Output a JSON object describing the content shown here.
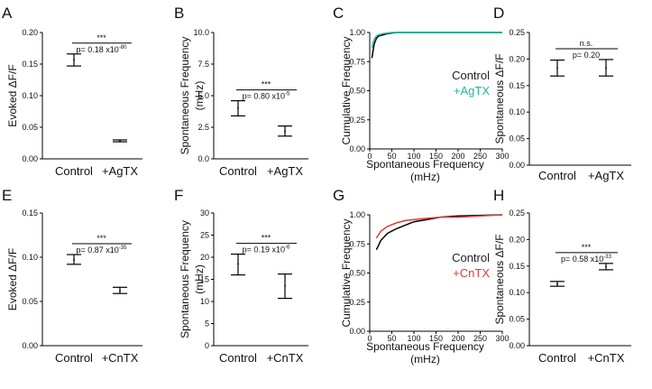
{
  "figure": {
    "panels": [
      {
        "id": "A",
        "type": "errorbar",
        "ylabel": "Evoked ΔF/F",
        "ylim": [
          0,
          0.2
        ],
        "yticks": [
          0,
          0.05,
          0.1,
          0.15,
          0.2
        ],
        "tick_labels": [
          "0.00",
          "0.05",
          "0.10",
          "0.15",
          "0.20"
        ],
        "categories": [
          "Control",
          "+AgTX"
        ],
        "means": [
          0.157,
          0.028
        ],
        "lows": [
          0.147,
          0.027
        ],
        "highs": [
          0.166,
          0.03
        ],
        "sig": {
          "stars": "***",
          "pvalue": "p= 0.18 x10",
          "exp": "-80"
        }
      },
      {
        "id": "B",
        "type": "errorbar",
        "ylabel": "Spontaneous Frequency (mHz)",
        "ylim": [
          0,
          10
        ],
        "yticks": [
          0,
          2.5,
          5,
          7.5,
          10
        ],
        "tick_labels": [
          "0.0",
          "2.5",
          "5.0",
          "7.5",
          "10.0"
        ],
        "categories": [
          "Control",
          "+AgTX"
        ],
        "means": [
          4.0,
          2.2
        ],
        "lows": [
          3.4,
          1.8
        ],
        "highs": [
          4.6,
          2.6
        ],
        "sig": {
          "stars": "***",
          "pvalue": "p= 0.80 x10",
          "exp": "-5"
        }
      },
      {
        "id": "C",
        "type": "line",
        "ylabel": "Cumulative Frequency",
        "xlabel": "Spontaneous Frequency (mHz)",
        "xlim": [
          0,
          300
        ],
        "ylim": [
          0,
          1.0
        ],
        "xticks": [
          0,
          50,
          100,
          150,
          200,
          250,
          300
        ],
        "x_tick_labels": [
          "0",
          "50",
          "100",
          "150",
          "200",
          "250",
          "300"
        ],
        "yticks": [
          0,
          0.25,
          0.5,
          0.75,
          1.0
        ],
        "tick_labels": [
          "0.00",
          "0.25",
          "0.50",
          "0.75",
          "1.00"
        ],
        "series": [
          {
            "name": "Control",
            "color": "#000000",
            "x": [
              5,
              10,
              15,
              20,
              30,
              40,
              50,
              60,
              80,
              300
            ],
            "y": [
              0.78,
              0.9,
              0.95,
              0.97,
              0.98,
              0.99,
              0.995,
              1.0,
              1.0,
              1.0
            ]
          },
          {
            "name": "+AgTX",
            "color": "#1db89a",
            "x": [
              5,
              10,
              15,
              20,
              30,
              40,
              50,
              70,
              300
            ],
            "y": [
              0.87,
              0.94,
              0.97,
              0.98,
              0.99,
              0.995,
              1.0,
              1.0,
              1.0
            ]
          }
        ]
      },
      {
        "id": "D",
        "type": "errorbar",
        "ylabel": "Spontaneous ΔF/F",
        "ylim": [
          0,
          0.25
        ],
        "yticks": [
          0,
          0.05,
          0.1,
          0.15,
          0.2,
          0.25
        ],
        "tick_labels": [
          "0.00",
          "0.05",
          "0.10",
          "0.15",
          "0.20",
          "0.25"
        ],
        "categories": [
          "Control",
          "+AgTX"
        ],
        "means": [
          0.183,
          0.183
        ],
        "lows": [
          0.168,
          0.168
        ],
        "highs": [
          0.198,
          0.199
        ],
        "sig": {
          "stars": "n.s.",
          "pvalue": "p= 0.20",
          "exp": ""
        }
      },
      {
        "id": "E",
        "type": "errorbar",
        "ylabel": "Evoked ΔF/F",
        "ylim": [
          0,
          0.15
        ],
        "yticks": [
          0,
          0.05,
          0.1,
          0.15
        ],
        "tick_labels": [
          "0.00",
          "0.05",
          "0.10",
          "0.15"
        ],
        "categories": [
          "Control",
          "+CnTX"
        ],
        "means": [
          0.097,
          0.062
        ],
        "lows": [
          0.092,
          0.059
        ],
        "highs": [
          0.103,
          0.066
        ],
        "sig": {
          "stars": "***",
          "pvalue": "p= 0.87 x10",
          "exp": "-35"
        }
      },
      {
        "id": "F",
        "type": "errorbar",
        "ylabel": "Spontaneous Frequency (mHz)",
        "ylim": [
          0,
          30
        ],
        "yticks": [
          0,
          5,
          10,
          15,
          20,
          25,
          30
        ],
        "tick_labels": [
          "0",
          "5",
          "10",
          "15",
          "20",
          "25",
          "30"
        ],
        "categories": [
          "Control",
          "+CnTX"
        ],
        "means": [
          18.5,
          13.5
        ],
        "lows": [
          16,
          10.7
        ],
        "highs": [
          20.7,
          16.2
        ],
        "sig": {
          "stars": "***",
          "pvalue": "p= 0.19 x10",
          "exp": "-6"
        }
      },
      {
        "id": "G",
        "type": "line",
        "ylabel": "Cumulative Frequency",
        "xlabel": "Spontaneous Frequency (mHz)",
        "xlim": [
          0,
          300
        ],
        "ylim": [
          0,
          1.0
        ],
        "xticks": [
          0,
          50,
          100,
          150,
          200,
          250,
          300
        ],
        "x_tick_labels": [
          "0",
          "50",
          "100",
          "150",
          "200",
          "250",
          "300"
        ],
        "yticks": [
          0,
          0.25,
          0.5,
          0.75,
          1.0
        ],
        "tick_labels": [
          "0.00",
          "0.25",
          "0.50",
          "0.75",
          "1.00"
        ],
        "series": [
          {
            "name": "Control",
            "color": "#000000",
            "x": [
              15,
              25,
              40,
              60,
              80,
              100,
              130,
              160,
              200,
              300
            ],
            "y": [
              0.7,
              0.78,
              0.84,
              0.88,
              0.91,
              0.94,
              0.96,
              0.98,
              0.99,
              1.0
            ]
          },
          {
            "name": "+CnTX",
            "color": "#e23a35",
            "x": [
              15,
              25,
              40,
              60,
              80,
              100,
              130,
              160,
              200,
              250,
              300
            ],
            "y": [
              0.8,
              0.86,
              0.9,
              0.93,
              0.95,
              0.96,
              0.97,
              0.98,
              0.98,
              0.99,
              1.0
            ]
          }
        ]
      },
      {
        "id": "H",
        "type": "errorbar",
        "ylabel": "Spontaneous ΔF/F",
        "ylim": [
          0,
          0.25
        ],
        "yticks": [
          0,
          0.05,
          0.1,
          0.15,
          0.2,
          0.25
        ],
        "tick_labels": [
          "0.00",
          "0.05",
          "0.10",
          "0.15",
          "0.20",
          "0.25"
        ],
        "categories": [
          "Control",
          "+CnTX"
        ],
        "means": [
          0.116,
          0.149
        ],
        "lows": [
          0.112,
          0.143
        ],
        "highs": [
          0.121,
          0.155
        ],
        "sig": {
          "stars": "***",
          "pvalue": "p= 0.58 x10",
          "exp": "-33"
        }
      }
    ]
  },
  "chart_data": [
    {
      "type": "scatter",
      "title": "A",
      "ylabel": "Evoked ΔF/F",
      "categories": [
        "Control",
        "+AgTX"
      ],
      "values": [
        0.157,
        0.028
      ],
      "ylim": [
        0,
        0.2
      ]
    },
    {
      "type": "scatter",
      "title": "B",
      "ylabel": "Spontaneous Frequency (mHz)",
      "categories": [
        "Control",
        "+AgTX"
      ],
      "values": [
        4.0,
        2.2
      ],
      "ylim": [
        0,
        10
      ]
    },
    {
      "type": "line",
      "title": "C",
      "xlabel": "Spontaneous Frequency (mHz)",
      "ylabel": "Cumulative Frequency",
      "series": [
        {
          "name": "Control"
        },
        {
          "name": "+AgTX"
        }
      ],
      "xlim": [
        0,
        300
      ],
      "ylim": [
        0,
        1
      ]
    },
    {
      "type": "scatter",
      "title": "D",
      "ylabel": "Spontaneous ΔF/F",
      "categories": [
        "Control",
        "+AgTX"
      ],
      "values": [
        0.183,
        0.183
      ],
      "ylim": [
        0,
        0.25
      ]
    },
    {
      "type": "scatter",
      "title": "E",
      "ylabel": "Evoked ΔF/F",
      "categories": [
        "Control",
        "+CnTX"
      ],
      "values": [
        0.097,
        0.062
      ],
      "ylim": [
        0,
        0.15
      ]
    },
    {
      "type": "scatter",
      "title": "F",
      "ylabel": "Spontaneous Frequency (mHz)",
      "categories": [
        "Control",
        "+CnTX"
      ],
      "values": [
        18.5,
        13.5
      ],
      "ylim": [
        0,
        30
      ]
    },
    {
      "type": "line",
      "title": "G",
      "xlabel": "Spontaneous Frequency (mHz)",
      "ylabel": "Cumulative Frequency",
      "series": [
        {
          "name": "Control"
        },
        {
          "name": "+CnTX"
        }
      ],
      "xlim": [
        0,
        300
      ],
      "ylim": [
        0,
        1
      ]
    },
    {
      "type": "scatter",
      "title": "H",
      "ylabel": "Spontaneous ΔF/F",
      "categories": [
        "Control",
        "+CnTX"
      ],
      "values": [
        0.116,
        0.149
      ],
      "ylim": [
        0,
        0.25
      ]
    }
  ]
}
